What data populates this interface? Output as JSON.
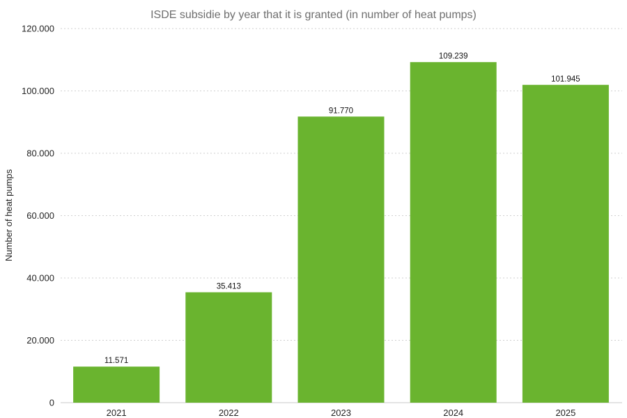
{
  "chart_data": {
    "type": "bar",
    "title": "ISDE subsidie by year that it is granted (in number of heat pumps)",
    "xlabel": "",
    "ylabel": "Number of heat pumps",
    "categories": [
      "2021",
      "2022",
      "2023",
      "2024",
      "2025"
    ],
    "values": [
      11571,
      35413,
      91770,
      109239,
      101945
    ],
    "data_labels": [
      "11.571",
      "35.413",
      "91.770",
      "109.239",
      "101.945"
    ],
    "ylim": [
      0,
      120000
    ],
    "yticks": [
      0,
      20000,
      40000,
      60000,
      80000,
      100000,
      120000
    ],
    "ytick_labels": [
      "0",
      "20.000",
      "40.000",
      "60.000",
      "80.000",
      "100.000",
      "120.000"
    ],
    "grid": true,
    "bar_color": "#6ab42f"
  }
}
